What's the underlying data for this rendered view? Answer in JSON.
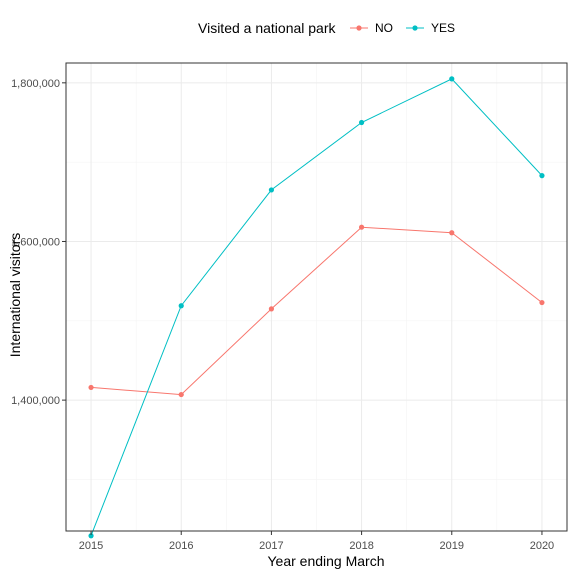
{
  "chart_data": {
    "type": "line",
    "xlabel": "Year ending March",
    "ylabel": "International visitors",
    "x": [
      "2015",
      "2016",
      "2017",
      "2018",
      "2019",
      "2020"
    ],
    "ylim": [
      1235000,
      1825000
    ],
    "yticks": [
      1400000,
      1600000,
      1800000
    ],
    "ytick_labels": [
      "1,400,000",
      "1,600,000",
      "1,800,000"
    ],
    "grid": true,
    "legend": {
      "title": "Visited a national park",
      "placement": "top",
      "entries": [
        "NO",
        "YES"
      ]
    },
    "series": [
      {
        "name": "NO",
        "color": "#F8766D",
        "values": [
          1416000,
          1407000,
          1515000,
          1618000,
          1611000,
          1523000
        ]
      },
      {
        "name": "YES",
        "color": "#00BFC4",
        "values": [
          1229000,
          1519000,
          1665000,
          1750000,
          1805000,
          1683000
        ]
      }
    ]
  }
}
